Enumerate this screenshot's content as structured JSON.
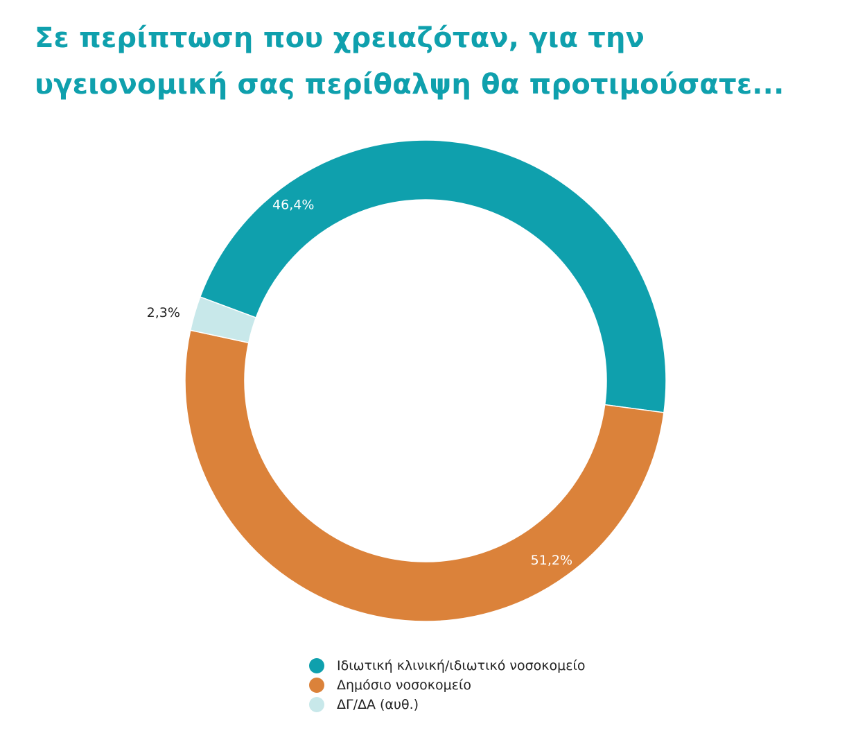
{
  "title": "Σε περίπτωση που χρειαζόταν, για την υγειονομική σας περίθαλψη θα προτιμούσατε...",
  "chart_data": {
    "type": "pie",
    "variant": "donut",
    "title": "Σε περίπτωση που χρειαζόταν, για την υγειονομική σας περίθαλψη θα προτιμούσατε...",
    "slices": [
      {
        "name": "Ιδιωτική κλινική/ιδιωτικό νοσοκομείο",
        "value": 46.4,
        "label": "46,4%",
        "color": "#0fa0ad"
      },
      {
        "name": "Δημόσιο νοσοκομείο",
        "value": 51.2,
        "label": "51,2%",
        "color": "#db823a"
      },
      {
        "name": "ΔΓ/ΔΑ (αυθ.)",
        "value": 2.3,
        "label": "2,3%",
        "color": "#c8e8ea"
      }
    ],
    "legend_position": "bottom"
  }
}
